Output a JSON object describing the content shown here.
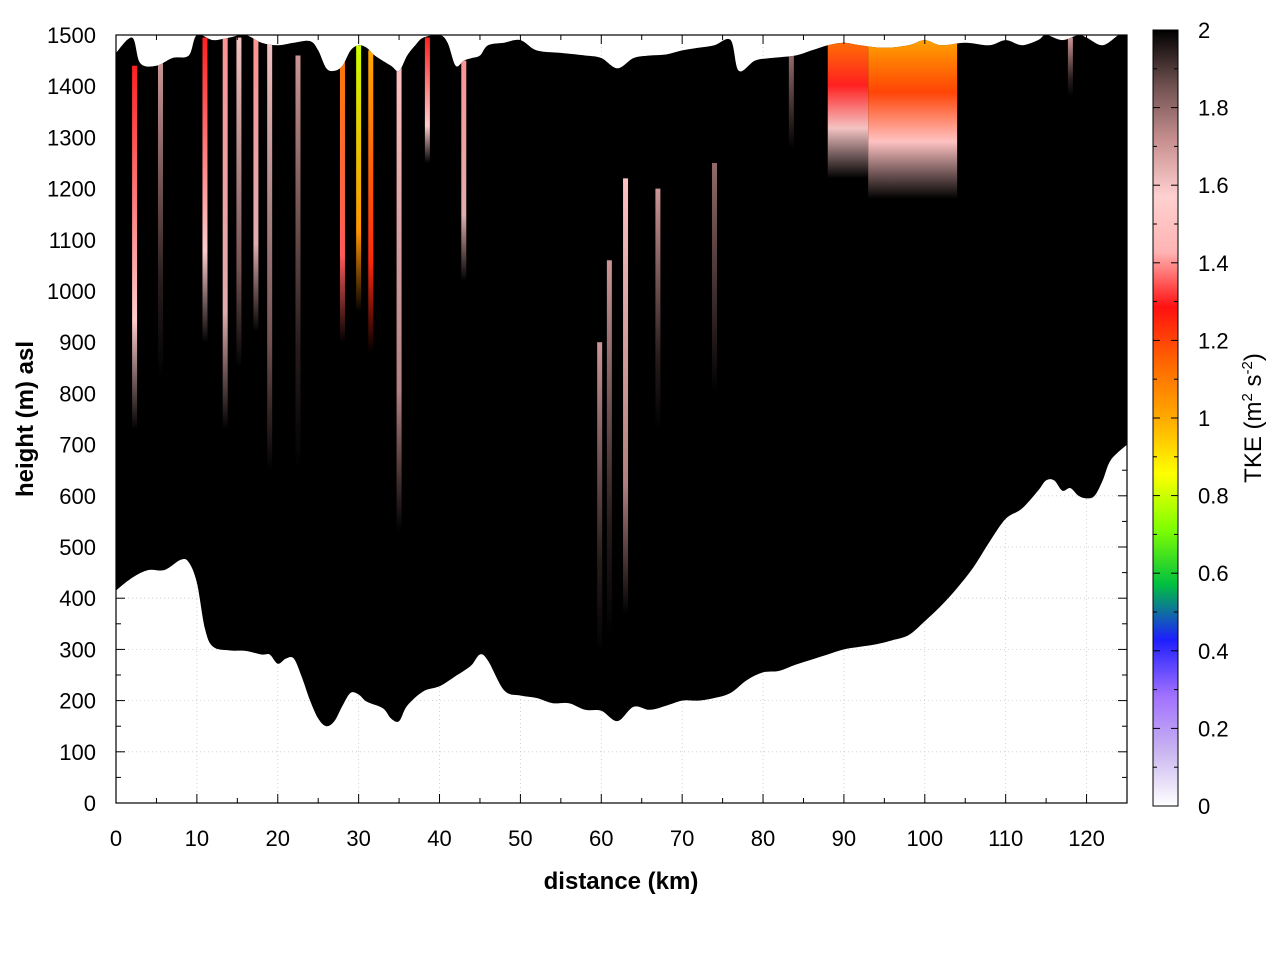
{
  "chart_data": {
    "type": "heatmap",
    "title": "",
    "xlabel": "distance (km)",
    "ylabel": "height (m) asl",
    "xlim": [
      0,
      125
    ],
    "ylim": [
      0,
      1500
    ],
    "x_ticks": [
      0,
      10,
      20,
      30,
      40,
      50,
      60,
      70,
      80,
      90,
      100,
      110,
      120
    ],
    "x_tick_labels": [
      "0",
      "10",
      "20",
      "30",
      "40",
      "50",
      "60",
      "70",
      "80",
      "90",
      "100",
      "110",
      "120"
    ],
    "y_ticks": [
      0,
      100,
      200,
      300,
      400,
      500,
      600,
      700,
      800,
      900,
      1000,
      1100,
      1200,
      1300,
      1400,
      1500
    ],
    "y_tick_labels": [
      "0",
      "100",
      "200",
      "300",
      "400",
      "500",
      "600",
      "700",
      "800",
      "900",
      "1000",
      "1100",
      "1200",
      "1300",
      "1400",
      "1500"
    ],
    "grid": true,
    "colorbar": {
      "label_prefix": "TKE (m",
      "label_sup1": "2",
      "label_mid": " s",
      "label_sup2": "-2",
      "label_suffix": ")",
      "range": [
        0,
        2
      ],
      "ticks": [
        0,
        0.2,
        0.4,
        0.6,
        0.8,
        1,
        1.2,
        1.4,
        1.6,
        1.8,
        2
      ],
      "tick_labels": [
        "0",
        "0.2",
        "0.4",
        "0.6",
        "0.8",
        "1",
        "1.2",
        "1.4",
        "1.6",
        "1.8",
        "2"
      ],
      "position": "right",
      "palette": [
        "#ffffff",
        "#c8b4f0",
        "#a070ff",
        "#1e1eff",
        "#00c040",
        "#80ff00",
        "#ffff00",
        "#ffaa00",
        "#ff6600",
        "#ff1010",
        "#ffb4b4",
        "#ffd0d0",
        "#c89090",
        "#705050",
        "#000000"
      ]
    },
    "lower_boundary": [
      [
        0,
        415
      ],
      [
        2,
        440
      ],
      [
        4,
        455
      ],
      [
        6,
        455
      ],
      [
        8,
        475
      ],
      [
        9,
        470
      ],
      [
        10,
        430
      ],
      [
        11,
        340
      ],
      [
        12,
        305
      ],
      [
        14,
        298
      ],
      [
        16,
        297
      ],
      [
        18,
        290
      ],
      [
        19,
        290
      ],
      [
        20,
        272
      ],
      [
        21,
        282
      ],
      [
        22,
        282
      ],
      [
        23,
        245
      ],
      [
        24,
        200
      ],
      [
        25,
        165
      ],
      [
        26,
        150
      ],
      [
        27,
        160
      ],
      [
        28,
        190
      ],
      [
        29,
        215
      ],
      [
        30,
        212
      ],
      [
        31,
        198
      ],
      [
        33,
        185
      ],
      [
        34,
        165
      ],
      [
        35,
        160
      ],
      [
        36,
        190
      ],
      [
        38,
        218
      ],
      [
        40,
        228
      ],
      [
        42,
        248
      ],
      [
        43,
        258
      ],
      [
        44,
        270
      ],
      [
        45,
        290
      ],
      [
        46,
        278
      ],
      [
        48,
        220
      ],
      [
        50,
        210
      ],
      [
        52,
        205
      ],
      [
        54,
        195
      ],
      [
        56,
        195
      ],
      [
        58,
        182
      ],
      [
        60,
        180
      ],
      [
        62,
        160
      ],
      [
        64,
        188
      ],
      [
        66,
        182
      ],
      [
        68,
        190
      ],
      [
        70,
        200
      ],
      [
        72,
        200
      ],
      [
        74,
        205
      ],
      [
        76,
        215
      ],
      [
        78,
        240
      ],
      [
        80,
        255
      ],
      [
        82,
        258
      ],
      [
        84,
        270
      ],
      [
        86,
        280
      ],
      [
        88,
        290
      ],
      [
        90,
        300
      ],
      [
        92,
        305
      ],
      [
        94,
        310
      ],
      [
        96,
        318
      ],
      [
        98,
        328
      ],
      [
        100,
        355
      ],
      [
        102,
        385
      ],
      [
        104,
        420
      ],
      [
        106,
        460
      ],
      [
        108,
        510
      ],
      [
        110,
        555
      ],
      [
        112,
        575
      ],
      [
        114,
        610
      ],
      [
        115,
        630
      ],
      [
        116,
        630
      ],
      [
        117,
        610
      ],
      [
        118,
        615
      ],
      [
        119,
        600
      ],
      [
        120,
        595
      ],
      [
        121,
        600
      ],
      [
        122,
        630
      ],
      [
        123,
        670
      ],
      [
        125,
        700
      ]
    ],
    "upper_boundary": [
      [
        0,
        1465
      ],
      [
        2,
        1495
      ],
      [
        3,
        1445
      ],
      [
        5,
        1440
      ],
      [
        7,
        1455
      ],
      [
        9,
        1460
      ],
      [
        10,
        1500
      ],
      [
        12,
        1490
      ],
      [
        14,
        1495
      ],
      [
        16,
        1500
      ],
      [
        18,
        1485
      ],
      [
        20,
        1480
      ],
      [
        22,
        1485
      ],
      [
        24,
        1488
      ],
      [
        25,
        1470
      ],
      [
        26,
        1435
      ],
      [
        27,
        1430
      ],
      [
        28,
        1440
      ],
      [
        29,
        1470
      ],
      [
        30,
        1480
      ],
      [
        31,
        1475
      ],
      [
        32,
        1460
      ],
      [
        34,
        1440
      ],
      [
        35,
        1430
      ],
      [
        36,
        1460
      ],
      [
        37,
        1480
      ],
      [
        38,
        1495
      ],
      [
        40,
        1500
      ],
      [
        41,
        1485
      ],
      [
        42,
        1440
      ],
      [
        43,
        1450
      ],
      [
        44,
        1455
      ],
      [
        45,
        1460
      ],
      [
        46,
        1480
      ],
      [
        48,
        1485
      ],
      [
        50,
        1490
      ],
      [
        52,
        1470
      ],
      [
        55,
        1465
      ],
      [
        58,
        1460
      ],
      [
        60,
        1455
      ],
      [
        62,
        1435
      ],
      [
        64,
        1455
      ],
      [
        66,
        1460
      ],
      [
        68,
        1462
      ],
      [
        70,
        1470
      ],
      [
        72,
        1475
      ],
      [
        74,
        1480
      ],
      [
        76,
        1490
      ],
      [
        77,
        1430
      ],
      [
        79,
        1450
      ],
      [
        81,
        1455
      ],
      [
        84,
        1460
      ],
      [
        86,
        1470
      ],
      [
        88,
        1480
      ],
      [
        90,
        1485
      ],
      [
        92,
        1480
      ],
      [
        95,
        1475
      ],
      [
        98,
        1480
      ],
      [
        100,
        1490
      ],
      [
        102,
        1480
      ],
      [
        105,
        1485
      ],
      [
        108,
        1480
      ],
      [
        110,
        1490
      ],
      [
        112,
        1480
      ],
      [
        114,
        1490
      ],
      [
        115,
        1500
      ],
      [
        117,
        1490
      ],
      [
        119,
        1500
      ],
      [
        120,
        1495
      ],
      [
        122,
        1480
      ],
      [
        124,
        1500
      ],
      [
        125,
        1500
      ]
    ],
    "turbulent_columns": [
      {
        "x": 2.3,
        "y_bottom": 730,
        "y_top": 1440,
        "tke": 1.3
      },
      {
        "x": 5.5,
        "y_bottom": 830,
        "y_top": 1445,
        "tke": 1.7
      },
      {
        "x": 11.0,
        "y_bottom": 900,
        "y_top": 1495,
        "tke": 1.3
      },
      {
        "x": 13.5,
        "y_bottom": 730,
        "y_top": 1495,
        "tke": 1.4
      },
      {
        "x": 15.2,
        "y_bottom": 850,
        "y_top": 1495,
        "tke": 1.6
      },
      {
        "x": 17.3,
        "y_bottom": 920,
        "y_top": 1495,
        "tke": 1.4
      },
      {
        "x": 19.0,
        "y_bottom": 650,
        "y_top": 1490,
        "tke": 1.6
      },
      {
        "x": 22.5,
        "y_bottom": 650,
        "y_top": 1460,
        "tke": 1.7
      },
      {
        "x": 28.0,
        "y_bottom": 900,
        "y_top": 1470,
        "tke": 1.1
      },
      {
        "x": 30.0,
        "y_bottom": 960,
        "y_top": 1480,
        "tke": 0.8
      },
      {
        "x": 31.5,
        "y_bottom": 880,
        "y_top": 1470,
        "tke": 1.0
      },
      {
        "x": 35.0,
        "y_bottom": 530,
        "y_top": 1440,
        "tke": 1.5
      },
      {
        "x": 38.5,
        "y_bottom": 1250,
        "y_top": 1495,
        "tke": 1.3
      },
      {
        "x": 43.0,
        "y_bottom": 1020,
        "y_top": 1450,
        "tke": 1.4
      },
      {
        "x": 59.8,
        "y_bottom": 290,
        "y_top": 900,
        "tke": 1.7
      },
      {
        "x": 61.0,
        "y_bottom": 330,
        "y_top": 1060,
        "tke": 1.7
      },
      {
        "x": 63.0,
        "y_bottom": 370,
        "y_top": 1220,
        "tke": 1.5
      },
      {
        "x": 67.0,
        "y_bottom": 730,
        "y_top": 1200,
        "tke": 1.7
      },
      {
        "x": 74.0,
        "y_bottom": 610,
        "y_top": 1250,
        "tke": 1.8
      },
      {
        "x": 83.5,
        "y_bottom": 1200,
        "y_top": 1460,
        "tke": 1.8
      },
      {
        "x": 118.0,
        "y_bottom": 1380,
        "y_top": 1495,
        "tke": 1.7
      }
    ],
    "turbulent_sheets": [
      {
        "x_start": 88,
        "x_end": 93,
        "y_bottom": 1220,
        "y_top": 1500,
        "tke": 1.3
      },
      {
        "x_start": 93,
        "x_end": 104,
        "y_bottom": 1180,
        "y_top": 1500,
        "tke": 1.2
      }
    ]
  }
}
